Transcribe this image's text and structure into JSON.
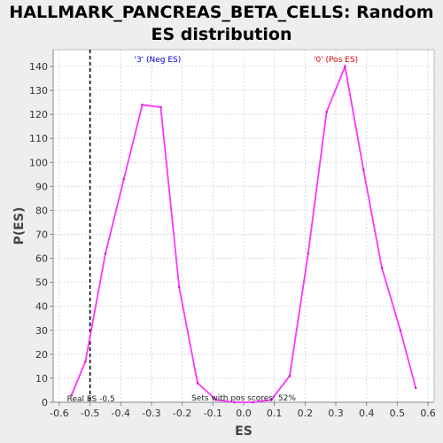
{
  "chart_data": {
    "type": "line",
    "title": [
      "HALLMARK_PANCREAS_BETA_CELLS: Random",
      "ES distribution"
    ],
    "xlabel": "ES",
    "ylabel": "P(ES)",
    "xlim": [
      -0.62,
      0.62
    ],
    "ylim": [
      0,
      147
    ],
    "xticks": [
      -0.6,
      -0.5,
      -0.4,
      -0.3,
      -0.2,
      -0.1,
      0,
      0.1,
      0.2,
      0.3,
      0.4,
      0.5,
      0.6
    ],
    "xtick_labels": [
      "-0.6",
      "-0.5",
      "-0.4",
      "-0.3",
      "-0.2",
      "-0.1",
      "0.0",
      "0.1",
      "0.2",
      "0.3",
      "0.4",
      "0.5",
      "0.6"
    ],
    "yticks": [
      0,
      10,
      20,
      30,
      40,
      50,
      60,
      70,
      80,
      90,
      100,
      110,
      120,
      130,
      140
    ],
    "grid": true,
    "series": [
      {
        "color": "#ff33ff",
        "x": [
          -0.56,
          -0.515,
          -0.45,
          -0.39,
          -0.33,
          -0.27,
          -0.21,
          -0.15,
          -0.09,
          -0.03,
          0.03,
          0.09,
          0.15,
          0.21,
          0.27,
          0.33,
          0.39,
          0.45,
          0.51,
          0.56
        ],
        "y": [
          3,
          17,
          62,
          93,
          124,
          123,
          48,
          8,
          1,
          0,
          0,
          1,
          11,
          62,
          121,
          140,
          97,
          56,
          30,
          6
        ]
      }
    ],
    "real_es": -0.5,
    "annotations": {
      "neg_label": "'3' (Neg ES)",
      "pos_label": "'0' (Pos ES)",
      "real_es_label": "Real ES -0.5",
      "pos_scores_label": "Sets with pos scores: 52%"
    },
    "colors": {
      "neg": "#0000cc",
      "pos": "#dd0000",
      "dashed": "#000000"
    }
  }
}
